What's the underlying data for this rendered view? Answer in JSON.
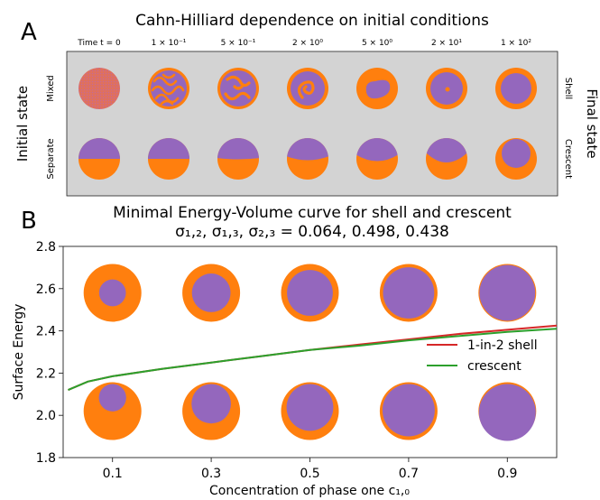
{
  "panel_a": {
    "letter": "A",
    "title": "Cahn-Hilliard dependence on initial conditions",
    "time_prefix": "Time",
    "time_labels": [
      "t = 0",
      "1 × 10⁻¹",
      "5 × 10⁻¹",
      "2 × 10⁰",
      "5 × 10⁰",
      "2 × 10¹",
      "1 × 10²"
    ],
    "left_label": "Initial state",
    "right_label": "Final state",
    "row_labels": [
      "Mixed",
      "Separate"
    ],
    "row_final_labels": [
      "Shell",
      "Crescent"
    ],
    "colors": {
      "background": "#d3d3d3",
      "phase_orange": "#ff7f0e",
      "phase_purple": "#9467bd",
      "mixed": "#e0705c"
    }
  },
  "panel_b": {
    "letter": "B",
    "title_line1": "Minimal Energy-Volume curve for shell and crescent",
    "title_line2": "σ₁,₂, σ₁,₃, σ₂,₃ = 0.064, 0.498, 0.438"
  },
  "chart_data": {
    "type": "line",
    "xlabel": "Concentration of phase one c₁,₀",
    "ylabel": "Surface Energy",
    "xlim": [
      0.0,
      1.0
    ],
    "ylim": [
      1.8,
      2.8
    ],
    "xticks": [
      0.1,
      0.3,
      0.5,
      0.7,
      0.9
    ],
    "xtick_labels": [
      "0.1",
      "0.3",
      "0.5",
      "0.7",
      "0.9"
    ],
    "yticks": [
      1.8,
      2.0,
      2.2,
      2.4,
      2.6,
      2.8
    ],
    "ytick_labels": [
      "1.8",
      "2.0",
      "2.2",
      "2.4",
      "2.6",
      "2.8"
    ],
    "legend_position": "right",
    "series": [
      {
        "name": "1-in-2 shell",
        "color": "#d62728",
        "x": [
          0.01,
          0.05,
          0.1,
          0.2,
          0.3,
          0.4,
          0.5,
          0.6,
          0.7,
          0.8,
          0.9,
          1.0
        ],
        "y": [
          2.12,
          2.16,
          2.185,
          2.22,
          2.25,
          2.28,
          2.31,
          2.335,
          2.36,
          2.385,
          2.405,
          2.425
        ]
      },
      {
        "name": "crescent",
        "color": "#2ca02c",
        "x": [
          0.01,
          0.05,
          0.1,
          0.2,
          0.3,
          0.4,
          0.5,
          0.6,
          0.7,
          0.8,
          0.9,
          1.0
        ],
        "y": [
          2.12,
          2.16,
          2.185,
          2.22,
          2.25,
          2.28,
          2.31,
          2.33,
          2.355,
          2.375,
          2.395,
          2.41
        ]
      }
    ],
    "inset_concentrations": [
      0.1,
      0.3,
      0.5,
      0.7,
      0.9
    ]
  }
}
